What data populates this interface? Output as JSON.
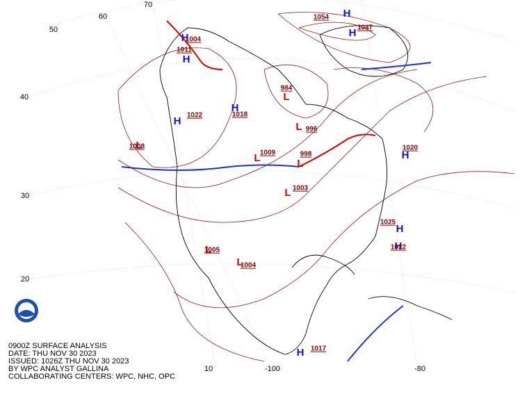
{
  "caption": [
    "0900Z SURFACE ANALYSIS",
    "DATE: THU NOV 30 2023",
    "ISSUED: 1026Z THU NOV 30 2023",
    "BY WPC ANALYST GALLINA",
    "COLLABORATING CENTERS: WPC, NHC, OPC"
  ],
  "grid_labels": [
    "50",
    "40",
    "30",
    "20",
    "10",
    "70",
    "60",
    "-100",
    "-80"
  ],
  "highs": [
    {
      "symbol": "H",
      "pressure": "1054"
    },
    {
      "symbol": "H",
      "pressure": "1047"
    },
    {
      "symbol": "H",
      "pressure": "1025"
    },
    {
      "symbol": "H",
      "pressure": "1022"
    },
    {
      "symbol": "H",
      "pressure": "1020"
    },
    {
      "symbol": "H",
      "pressure": "1017"
    },
    {
      "symbol": "H",
      "pressure": "1018"
    },
    {
      "symbol": "H",
      "pressure": "1022"
    },
    {
      "symbol": "H",
      "pressure": "1004"
    },
    {
      "symbol": "H",
      "pressure": "1011"
    }
  ],
  "lows": [
    {
      "symbol": "L",
      "pressure": "998"
    },
    {
      "symbol": "L",
      "pressure": "1003"
    },
    {
      "symbol": "L",
      "pressure": "1009"
    },
    {
      "symbol": "L",
      "pressure": "996"
    },
    {
      "symbol": "L",
      "pressure": "1008"
    },
    {
      "symbol": "L",
      "pressure": "1004"
    },
    {
      "symbol": "L",
      "pressure": "1005"
    },
    {
      "symbol": "L",
      "pressure": "984"
    }
  ]
}
